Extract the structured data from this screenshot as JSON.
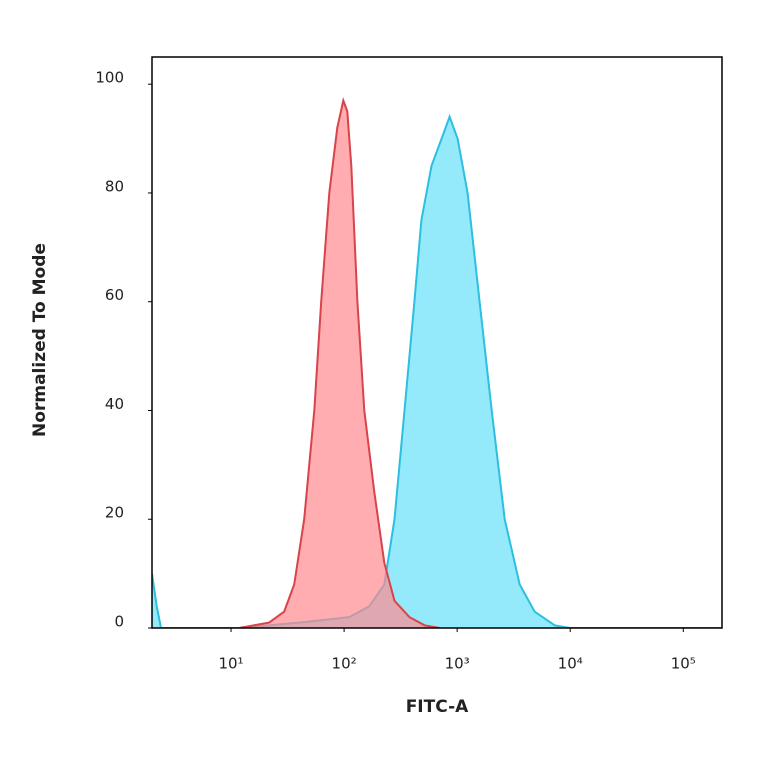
{
  "chart_data": {
    "type": "area",
    "x_label": "FITC-A",
    "y_label": "Normalized To Mode",
    "xscale": "log",
    "xlim": [
      2,
      220000
    ],
    "ylim": [
      0,
      105
    ],
    "xticks": [
      {
        "value": 10,
        "label": "10¹"
      },
      {
        "value": 100,
        "label": "10²"
      },
      {
        "value": 1000,
        "label": "10³"
      },
      {
        "value": 10000,
        "label": "10⁴"
      },
      {
        "value": 100000,
        "label": "10⁵"
      }
    ],
    "yticks": [
      0,
      20,
      40,
      60,
      80,
      100
    ],
    "grid": false,
    "series": [
      {
        "color": "#2bbfe0",
        "fill": "#66e0fa",
        "x": [
          2,
          2.2,
          2.4,
          11.8,
          40.1,
          111,
          167,
          227,
          279,
          342,
          419,
          483,
          593,
          728,
          857,
          1009,
          1237,
          1580,
          2020,
          2632,
          3573,
          4853,
          7295,
          9910,
          220000
        ],
        "values": [
          10,
          4,
          0,
          0,
          1,
          2,
          4,
          8,
          20,
          40,
          60,
          75,
          85,
          90,
          94,
          90,
          80,
          60,
          40,
          20,
          8,
          3,
          0.5,
          0,
          0
        ]
      },
      {
        "color": "#d9434a",
        "fill": "#ff8a8e",
        "x": [
          11.8,
          21.7,
          29.5,
          36.2,
          44.4,
          54.5,
          62.8,
          74,
          87.1,
          98.4,
          106.7,
          115.8,
          131,
          151,
          185,
          227,
          279,
          378,
          514,
          698
        ],
        "values": [
          0,
          1,
          3,
          8,
          20,
          40,
          60,
          80,
          92,
          97,
          95,
          85,
          60,
          40,
          25,
          12,
          5,
          2,
          0.5,
          0
        ]
      }
    ]
  }
}
